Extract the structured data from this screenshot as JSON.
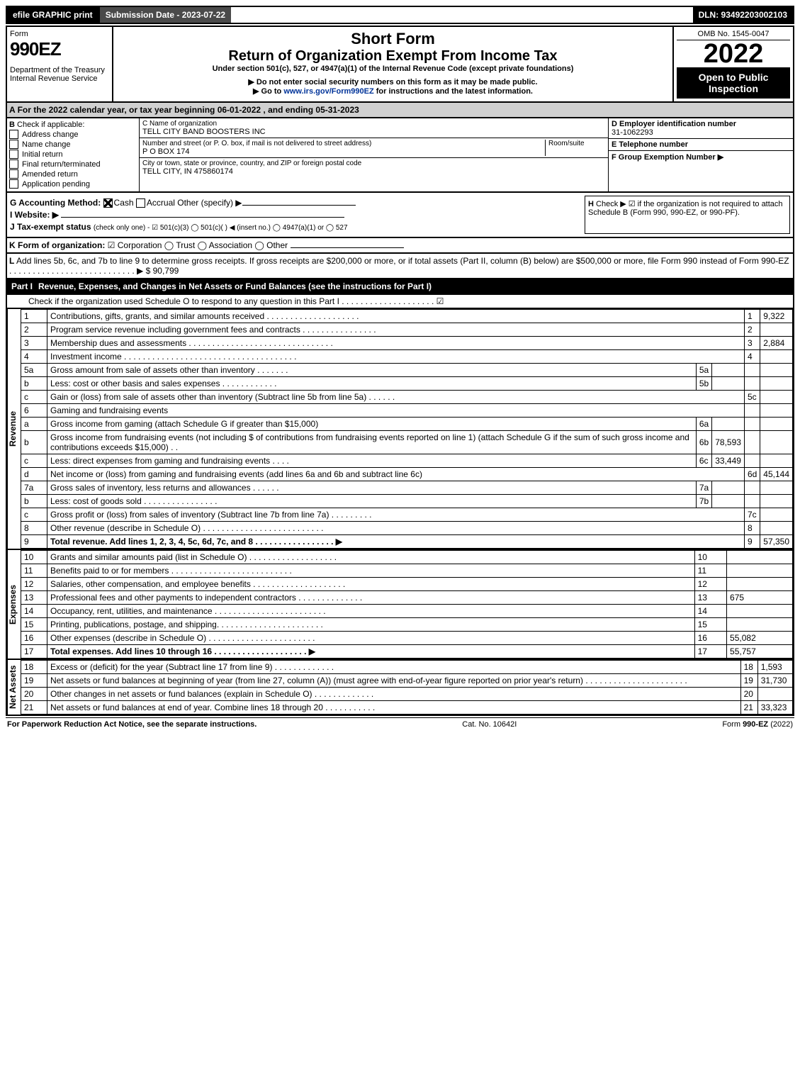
{
  "topbar": {
    "efile": "efile GRAPHIC print",
    "subdate": "Submission Date - 2023-07-22",
    "dln": "DLN: 93492203002103"
  },
  "header": {
    "formWord": "Form",
    "form990": "990EZ",
    "dept": "Department of the Treasury",
    "irs": "Internal Revenue Service",
    "shortform": "Short Form",
    "title": "Return of Organization Exempt From Income Tax",
    "sub1": "Under section 501(c), 527, or 4947(a)(1) of the Internal Revenue Code (except private foundations)",
    "sub2": "▶ Do not enter social security numbers on this form as it may be made public.",
    "sub3": "▶ Go to www.irs.gov/Form990EZ for instructions and the latest information.",
    "sub3_url": "www.irs.gov/Form990EZ",
    "omb": "OMB No. 1545-0047",
    "year": "2022",
    "open": "Open to Public Inspection"
  },
  "A": {
    "label": "A",
    "text": "For the 2022 calendar year, or tax year beginning 06-01-2022 , and ending 05-31-2023"
  },
  "B": {
    "label": "B",
    "intro": "Check if applicable:",
    "items": [
      "Address change",
      "Name change",
      "Initial return",
      "Final return/terminated",
      "Amended return",
      "Application pending"
    ]
  },
  "C": {
    "nameLabel": "C Name of organization",
    "name": "TELL CITY BAND BOOSTERS INC",
    "streetLabel": "Number and street (or P. O. box, if mail is not delivered to street address)",
    "roomLabel": "Room/suite",
    "street": "P O BOX 174",
    "cityLabel": "City or town, state or province, country, and ZIP or foreign postal code",
    "city": "TELL CITY, IN  475860174"
  },
  "D": {
    "label": "D Employer identification number",
    "ein": "31-1062293"
  },
  "E": {
    "label": "E Telephone number",
    "val": ""
  },
  "F": {
    "label": "F Group Exemption Number  ▶",
    "val": ""
  },
  "G": {
    "label": "G Accounting Method:",
    "cash": "Cash",
    "accrual": "Accrual",
    "other": "Other (specify) ▶"
  },
  "H": {
    "label": "H",
    "text": "Check ▶ ☑ if the organization is not required to attach Schedule B (Form 990, 990-EZ, or 990-PF)."
  },
  "I": {
    "label": "I Website: ▶",
    "val": ""
  },
  "J": {
    "label": "J Tax-exempt status",
    "text": "(check only one) - ☑ 501(c)(3) ◯ 501(c)(  ) ◀ (insert no.) ◯ 4947(a)(1) or ◯ 527"
  },
  "K": {
    "label": "K Form of organization:",
    "text": "☑ Corporation  ◯ Trust  ◯ Association  ◯ Other"
  },
  "L": {
    "label": "L",
    "text": "Add lines 5b, 6c, and 7b to line 9 to determine gross receipts. If gross receipts are $200,000 or more, or if total assets (Part II, column (B) below) are $500,000 or more, file Form 990 instead of Form 990-EZ  . . . . . . . . . . . . . . . . . . . . . . . . . . .  ▶ $ 90,799"
  },
  "PartI": {
    "label": "Part I",
    "title": "Revenue, Expenses, and Changes in Net Assets or Fund Balances (see the instructions for Part I)",
    "checkline": "Check if the organization used Schedule O to respond to any question in this Part I . . . . . . . . . . . . . . . . . . . .   ☑"
  },
  "revenue": {
    "sideLabel": "Revenue",
    "rows": [
      {
        "n": "1",
        "d": "Contributions, gifts, grants, and similar amounts received  . . . . . . . . . . . . . . . . . . . .",
        "rn": "1",
        "v": "9,322"
      },
      {
        "n": "2",
        "d": "Program service revenue including government fees and contracts  . . . . . . . . . . . . . . . .",
        "rn": "2",
        "v": ""
      },
      {
        "n": "3",
        "d": "Membership dues and assessments  . . . . . . . . . . . . . . . . . . . . . . . . . . . . . . .",
        "rn": "3",
        "v": "2,884"
      },
      {
        "n": "4",
        "d": "Investment income  . . . . . . . . . . . . . . . . . . . . . . . . . . . . . . . . . . . . .",
        "rn": "4",
        "v": ""
      },
      {
        "n": "5a",
        "d": "Gross amount from sale of assets other than inventory  . . . . . . .",
        "mid": "5a",
        "mv": "",
        "shade": true
      },
      {
        "n": "b",
        "d": "Less: cost or other basis and sales expenses  . . . . . . . . . . . .",
        "mid": "5b",
        "mv": "",
        "shade": true
      },
      {
        "n": "c",
        "d": "Gain or (loss) from sale of assets other than inventory (Subtract line 5b from line 5a)  . . . . . .",
        "rn": "5c",
        "v": ""
      },
      {
        "n": "6",
        "d": "Gaming and fundraising events",
        "shade": true
      },
      {
        "n": "a",
        "d": "Gross income from gaming (attach Schedule G if greater than $15,000)",
        "mid": "6a",
        "mv": "",
        "shade": true
      },
      {
        "n": "b",
        "d": "Gross income from fundraising events (not including $                    of contributions from fundraising events reported on line 1) (attach Schedule G if the sum of such gross income and contributions exceeds $15,000)   . .",
        "mid": "6b",
        "mv": "78,593",
        "shade": true
      },
      {
        "n": "c",
        "d": "Less: direct expenses from gaming and fundraising events   . . . .",
        "mid": "6c",
        "mv": "33,449",
        "shade": true
      },
      {
        "n": "d",
        "d": "Net income or (loss) from gaming and fundraising events (add lines 6a and 6b and subtract line 6c)",
        "rn": "6d",
        "v": "45,144"
      },
      {
        "n": "7a",
        "d": "Gross sales of inventory, less returns and allowances  . . . . . .",
        "mid": "7a",
        "mv": "",
        "shade": true
      },
      {
        "n": "b",
        "d": "Less: cost of goods sold        . . . . . . . . . . . . . . . .",
        "mid": "7b",
        "mv": "",
        "shade": true
      },
      {
        "n": "c",
        "d": "Gross profit or (loss) from sales of inventory (Subtract line 7b from line 7a)  . . . . . . . . .",
        "rn": "7c",
        "v": ""
      },
      {
        "n": "8",
        "d": "Other revenue (describe in Schedule O)  . . . . . . . . . . . . . . . . . . . . . . . . . .",
        "rn": "8",
        "v": ""
      },
      {
        "n": "9",
        "d": "Total revenue. Add lines 1, 2, 3, 4, 5c, 6d, 7c, and 8   . . . . . . . . . . . . . . . . .   ▶",
        "rn": "9",
        "v": "57,350",
        "bold": true
      }
    ]
  },
  "expenses": {
    "sideLabel": "Expenses",
    "rows": [
      {
        "n": "10",
        "d": "Grants and similar amounts paid (list in Schedule O)  . . . . . . . . . . . . . . . . . . .",
        "rn": "10",
        "v": ""
      },
      {
        "n": "11",
        "d": "Benefits paid to or for members       . . . . . . . . . . . . . . . . . . . . . . . . . .",
        "rn": "11",
        "v": ""
      },
      {
        "n": "12",
        "d": "Salaries, other compensation, and employee benefits . . . . . . . . . . . . . . . . . . . .",
        "rn": "12",
        "v": ""
      },
      {
        "n": "13",
        "d": "Professional fees and other payments to independent contractors  . . . . . . . . . . . . . .",
        "rn": "13",
        "v": "675"
      },
      {
        "n": "14",
        "d": "Occupancy, rent, utilities, and maintenance . . . . . . . . . . . . . . . . . . . . . . . .",
        "rn": "14",
        "v": ""
      },
      {
        "n": "15",
        "d": "Printing, publications, postage, and shipping.  . . . . . . . . . . . . . . . . . . . . . .",
        "rn": "15",
        "v": ""
      },
      {
        "n": "16",
        "d": "Other expenses (describe in Schedule O)     . . . . . . . . . . . . . . . . . . . . . . .",
        "rn": "16",
        "v": "55,082"
      },
      {
        "n": "17",
        "d": "Total expenses. Add lines 10 through 16       . . . . . . . . . . . . . . . . . . . .   ▶",
        "rn": "17",
        "v": "55,757",
        "bold": true
      }
    ]
  },
  "netassets": {
    "sideLabel": "Net Assets",
    "rows": [
      {
        "n": "18",
        "d": "Excess or (deficit) for the year (Subtract line 17 from line 9)        . . . . . . . . . . . . .",
        "rn": "18",
        "v": "1,593"
      },
      {
        "n": "19",
        "d": "Net assets or fund balances at beginning of year (from line 27, column (A)) (must agree with end-of-year figure reported on prior year's return) . . . . . . . . . . . . . . . . . . . . . .",
        "rn": "19",
        "v": "31,730"
      },
      {
        "n": "20",
        "d": "Other changes in net assets or fund balances (explain in Schedule O) . . . . . . . . . . . . .",
        "rn": "20",
        "v": ""
      },
      {
        "n": "21",
        "d": "Net assets or fund balances at end of year. Combine lines 18 through 20 . . . . . . . . . . .",
        "rn": "21",
        "v": "33,323"
      }
    ]
  },
  "footer": {
    "left": "For Paperwork Reduction Act Notice, see the separate instructions.",
    "mid": "Cat. No. 10642I",
    "right": "Form 990-EZ (2022)"
  }
}
